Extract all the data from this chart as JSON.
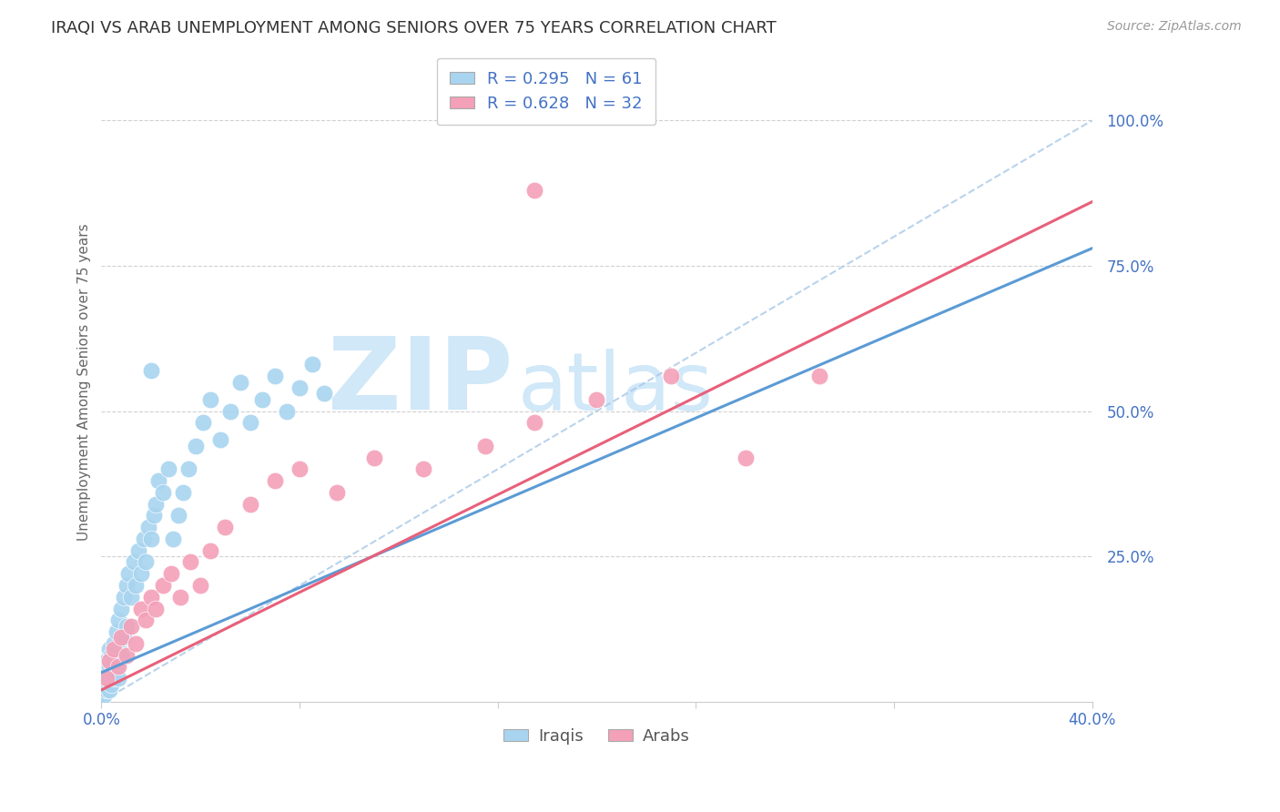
{
  "title": "IRAQI VS ARAB UNEMPLOYMENT AMONG SENIORS OVER 75 YEARS CORRELATION CHART",
  "source": "Source: ZipAtlas.com",
  "ylabel": "Unemployment Among Seniors over 75 years",
  "xlim": [
    0.0,
    0.4
  ],
  "ylim": [
    0.0,
    1.1
  ],
  "iraqis_color": "#A8D4F0",
  "arabs_color": "#F4A0B8",
  "iraqis_line_color": "#5B9BD5",
  "arabs_line_color": "#E8607A",
  "diagonal_color": "#A8C8E8",
  "iraqis_R": 0.295,
  "iraqis_N": 61,
  "arabs_R": 0.628,
  "arabs_N": 32,
  "watermark_zip": "ZIP",
  "watermark_atlas": "atlas",
  "watermark_color": "#D0E8F8",
  "background_color": "#FFFFFF",
  "grid_color": "#CCCCCC",
  "iraqis_x": [
    0.001,
    0.001,
    0.001,
    0.002,
    0.002,
    0.002,
    0.002,
    0.003,
    0.003,
    0.003,
    0.003,
    0.004,
    0.004,
    0.004,
    0.005,
    0.005,
    0.005,
    0.006,
    0.006,
    0.007,
    0.007,
    0.007,
    0.008,
    0.008,
    0.009,
    0.009,
    0.01,
    0.01,
    0.011,
    0.012,
    0.013,
    0.014,
    0.015,
    0.016,
    0.017,
    0.018,
    0.019,
    0.02,
    0.021,
    0.022,
    0.023,
    0.025,
    0.027,
    0.029,
    0.031,
    0.033,
    0.035,
    0.038,
    0.041,
    0.044,
    0.048,
    0.052,
    0.056,
    0.06,
    0.065,
    0.07,
    0.075,
    0.08,
    0.085,
    0.09,
    0.02
  ],
  "iraqis_y": [
    0.02,
    0.05,
    0.01,
    0.04,
    0.07,
    0.03,
    0.02,
    0.06,
    0.09,
    0.04,
    0.02,
    0.08,
    0.05,
    0.03,
    0.1,
    0.07,
    0.04,
    0.12,
    0.06,
    0.14,
    0.09,
    0.04,
    0.16,
    0.08,
    0.18,
    0.11,
    0.2,
    0.13,
    0.22,
    0.18,
    0.24,
    0.2,
    0.26,
    0.22,
    0.28,
    0.24,
    0.3,
    0.28,
    0.32,
    0.34,
    0.38,
    0.36,
    0.4,
    0.28,
    0.32,
    0.36,
    0.4,
    0.44,
    0.48,
    0.52,
    0.45,
    0.5,
    0.55,
    0.48,
    0.52,
    0.56,
    0.5,
    0.54,
    0.58,
    0.53,
    0.57
  ],
  "arabs_x": [
    0.002,
    0.003,
    0.005,
    0.007,
    0.008,
    0.01,
    0.012,
    0.014,
    0.016,
    0.018,
    0.02,
    0.022,
    0.025,
    0.028,
    0.032,
    0.036,
    0.04,
    0.044,
    0.05,
    0.06,
    0.07,
    0.08,
    0.095,
    0.11,
    0.13,
    0.155,
    0.175,
    0.2,
    0.23,
    0.26,
    0.29,
    0.175
  ],
  "arabs_y": [
    0.04,
    0.07,
    0.09,
    0.06,
    0.11,
    0.08,
    0.13,
    0.1,
    0.16,
    0.14,
    0.18,
    0.16,
    0.2,
    0.22,
    0.18,
    0.24,
    0.2,
    0.26,
    0.3,
    0.34,
    0.38,
    0.4,
    0.36,
    0.42,
    0.4,
    0.44,
    0.48,
    0.52,
    0.56,
    0.42,
    0.56,
    0.88
  ],
  "iraqis_line_x0": 0.0,
  "iraqis_line_y0": 0.05,
  "iraqis_line_x1": 0.4,
  "iraqis_line_y1": 0.78,
  "arabs_line_x0": 0.0,
  "arabs_line_y0": 0.02,
  "arabs_line_x1": 0.4,
  "arabs_line_y1": 0.86
}
